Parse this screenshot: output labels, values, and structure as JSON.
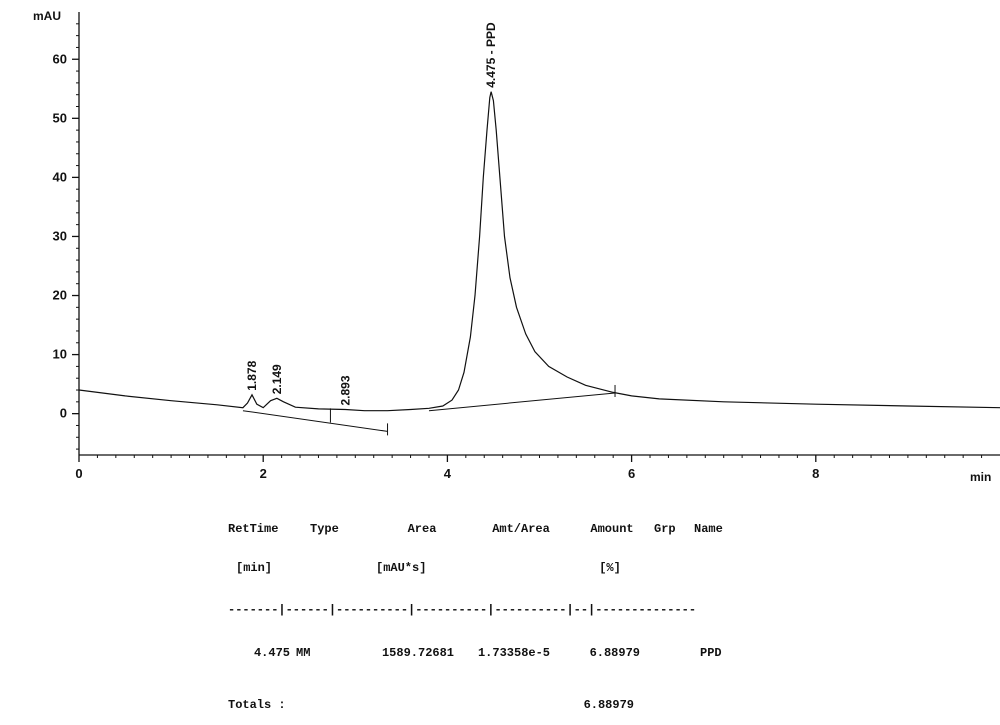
{
  "chart_data": {
    "type": "line",
    "ylabel": "mAU",
    "xlabel": "min",
    "xlim": [
      0,
      10
    ],
    "ylim": [
      -7,
      68
    ],
    "x_ticks": [
      0,
      2,
      4,
      6,
      8
    ],
    "y_ticks": [
      0,
      10,
      20,
      30,
      40,
      50,
      60
    ],
    "signal": [
      [
        0,
        4.0
      ],
      [
        0.5,
        3.0
      ],
      [
        1.0,
        2.2
      ],
      [
        1.5,
        1.5
      ],
      [
        1.78,
        1.0
      ],
      [
        1.83,
        1.8
      ],
      [
        1.878,
        3.2
      ],
      [
        1.93,
        1.6
      ],
      [
        2.0,
        1.0
      ],
      [
        2.08,
        2.2
      ],
      [
        2.149,
        2.6
      ],
      [
        2.22,
        2.0
      ],
      [
        2.35,
        1.1
      ],
      [
        2.6,
        0.8
      ],
      [
        2.893,
        0.7
      ],
      [
        3.1,
        0.5
      ],
      [
        3.35,
        0.5
      ],
      [
        3.6,
        0.7
      ],
      [
        3.8,
        0.9
      ],
      [
        3.95,
        1.3
      ],
      [
        4.05,
        2.3
      ],
      [
        4.12,
        4.0
      ],
      [
        4.18,
        7.0
      ],
      [
        4.25,
        13.0
      ],
      [
        4.3,
        20.0
      ],
      [
        4.35,
        30.0
      ],
      [
        4.39,
        40.0
      ],
      [
        4.43,
        48.0
      ],
      [
        4.46,
        53.5
      ],
      [
        4.475,
        54.5
      ],
      [
        4.5,
        53.0
      ],
      [
        4.53,
        48.0
      ],
      [
        4.57,
        40.0
      ],
      [
        4.62,
        30.0
      ],
      [
        4.68,
        23.0
      ],
      [
        4.75,
        18.0
      ],
      [
        4.85,
        13.5
      ],
      [
        4.95,
        10.5
      ],
      [
        5.1,
        8.0
      ],
      [
        5.3,
        6.2
      ],
      [
        5.5,
        4.8
      ],
      [
        5.8,
        3.6
      ],
      [
        6.0,
        3.0
      ],
      [
        6.3,
        2.5
      ],
      [
        7.0,
        2.0
      ],
      [
        8.0,
        1.6
      ],
      [
        9.0,
        1.3
      ],
      [
        10.0,
        1.0
      ]
    ],
    "baselines": [
      [
        [
          1.78,
          0.5
        ],
        [
          3.35,
          -3.0
        ]
      ],
      [
        [
          3.8,
          0.5
        ],
        [
          5.82,
          3.5
        ]
      ]
    ],
    "peaks": [
      {
        "rt": 1.878,
        "y": 3.2,
        "label": "1.878"
      },
      {
        "rt": 2.149,
        "y": 2.6,
        "label": "2.149"
      },
      {
        "rt": 2.893,
        "y": 0.7,
        "label": "2.893"
      },
      {
        "rt": 4.475,
        "y": 54.5,
        "label": "4.475 - PPD"
      }
    ]
  },
  "report": {
    "headers": {
      "rettime": "RetTime",
      "rettime_unit": "[min]",
      "type": "Type",
      "area": "Area",
      "area_unit": "[mAU*s]",
      "amt_area": "Amt/Area",
      "amount": "Amount",
      "amount_unit": "[%]",
      "grp": "Grp",
      "name": "Name"
    },
    "separator": "-------|------|----------|----------|----------|--|--------------",
    "rows": [
      {
        "rettime": "4.475",
        "type": "MM",
        "area": "1589.72681",
        "amt_area": "1.73358e-5",
        "amount": "6.88979",
        "grp": "",
        "name": "PPD"
      }
    ],
    "totals_label": "Totals :",
    "totals_amount": "6.88979"
  }
}
